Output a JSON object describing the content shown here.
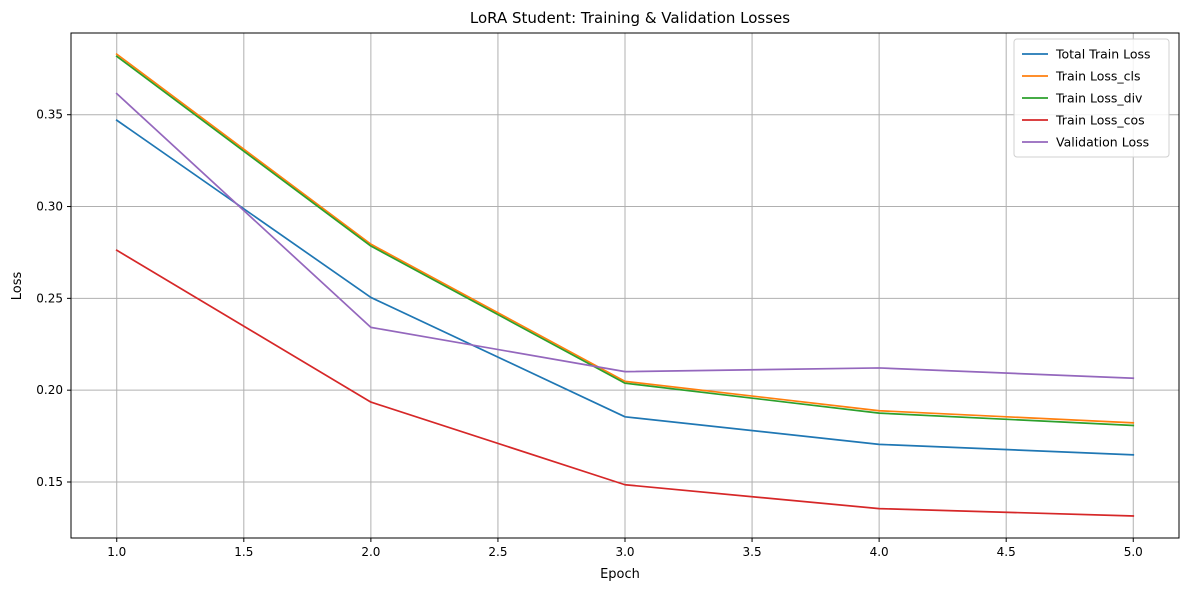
{
  "chart_data": {
    "type": "line",
    "title": "LoRA Student: Training & Validation Losses",
    "xlabel": "Epoch",
    "ylabel": "Loss",
    "x": [
      1.0,
      2.0,
      3.0,
      4.0,
      5.0
    ],
    "xlim": [
      0.82,
      5.18
    ],
    "ylim": [
      0.1195,
      0.3945
    ],
    "xticks": [
      1.0,
      1.5,
      2.0,
      2.5,
      3.0,
      3.5,
      4.0,
      4.5,
      5.0
    ],
    "xtick_labels": [
      "1.0",
      "1.5",
      "2.0",
      "2.5",
      "3.0",
      "3.5",
      "4.0",
      "4.5",
      "5.0"
    ],
    "yticks": [
      0.15,
      0.2,
      0.25,
      0.3,
      0.35
    ],
    "ytick_labels": [
      "0.15",
      "0.20",
      "0.25",
      "0.30",
      "0.35"
    ],
    "grid": true,
    "legend_position": "top-right",
    "series": [
      {
        "name": "Total Train Loss",
        "color": "#1f77b4",
        "values": [
          0.347,
          0.2505,
          0.1855,
          0.1705,
          0.1648
        ]
      },
      {
        "name": "Train Loss_cls",
        "color": "#ff7f0e",
        "values": [
          0.383,
          0.2795,
          0.2048,
          0.1888,
          0.1822
        ]
      },
      {
        "name": "Train Loss_div",
        "color": "#2ca02c",
        "values": [
          0.3818,
          0.2785,
          0.2038,
          0.1875,
          0.1808
        ]
      },
      {
        "name": "Train Loss_cos",
        "color": "#d62728",
        "values": [
          0.2762,
          0.1935,
          0.1485,
          0.1355,
          0.1315
        ]
      },
      {
        "name": "Validation Loss",
        "color": "#9467bd",
        "values": [
          0.3615,
          0.2342,
          0.2101,
          0.2121,
          0.2065
        ]
      }
    ]
  }
}
